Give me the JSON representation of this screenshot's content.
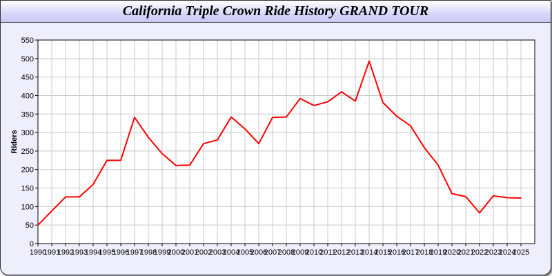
{
  "chart_data": {
    "type": "line",
    "title": "California Triple Crown Ride History GRAND TOUR",
    "xlabel": "",
    "ylabel": "Riders",
    "x": [
      1990,
      1991,
      1992,
      1993,
      1994,
      1995,
      1996,
      1997,
      1998,
      1999,
      2000,
      2001,
      2002,
      2003,
      2004,
      2005,
      2006,
      2007,
      2008,
      2009,
      2010,
      2011,
      2012,
      2013,
      2014,
      2015,
      2016,
      2017,
      2018,
      2019,
      2020,
      2021,
      2022,
      2023,
      2024,
      2025
    ],
    "series": [
      {
        "values": [
          50,
          88,
          126,
          126,
          160,
          225,
          225,
          341,
          287,
          243,
          211,
          212,
          270,
          280,
          342,
          310,
          270,
          341,
          342,
          392,
          373,
          383,
          410,
          385,
          493,
          381,
          344,
          318,
          259,
          212,
          135,
          127,
          83,
          129,
          124,
          123
        ],
        "color": "#ff0000"
      }
    ],
    "xlim": [
      1990,
      2026
    ],
    "ylim": [
      0,
      550
    ],
    "yticks": [
      0,
      50,
      100,
      150,
      200,
      250,
      300,
      350,
      400,
      450,
      500,
      550
    ],
    "grid": true,
    "colors": {
      "line": "#ff0000",
      "grid": "#c8c8c8",
      "background": "#eeeefc"
    }
  }
}
